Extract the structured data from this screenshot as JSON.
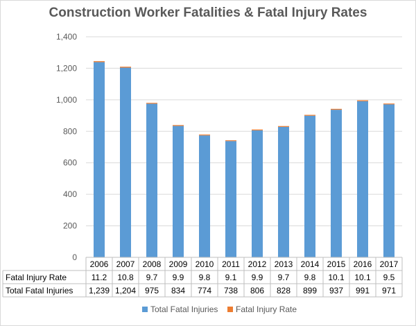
{
  "chart_data": {
    "type": "bar",
    "stacked": true,
    "title": "Construction Worker Fatalities & Fatal Injury Rates",
    "categories": [
      "2006",
      "2007",
      "2008",
      "2009",
      "2010",
      "2011",
      "2012",
      "2013",
      "2014",
      "2015",
      "2016",
      "2017"
    ],
    "series": [
      {
        "name": "Total Fatal Injuries",
        "color": "#5b9bd5",
        "values": [
          1239,
          1204,
          975,
          834,
          774,
          738,
          806,
          828,
          899,
          937,
          991,
          971
        ],
        "display": [
          "1,239",
          "1,204",
          "975",
          "834",
          "774",
          "738",
          "806",
          "828",
          "899",
          "937",
          "991",
          "971"
        ]
      },
      {
        "name": "Fatal Injury Rate",
        "color": "#ed7d31",
        "values": [
          11.2,
          10.8,
          9.7,
          9.9,
          9.8,
          9.1,
          9.9,
          9.7,
          9.8,
          10.1,
          10.1,
          9.5
        ],
        "display": [
          "11.2",
          "10.8",
          "9.7",
          "9.9",
          "9.8",
          "9.1",
          "9.9",
          "9.7",
          "9.8",
          "10.1",
          "10.1",
          "9.5"
        ]
      }
    ],
    "ylim": [
      0,
      1400
    ],
    "yticks": [
      "0",
      "200",
      "400",
      "600",
      "800",
      "1,000",
      "1,200",
      "1,400"
    ],
    "ytick_values": [
      0,
      200,
      400,
      600,
      800,
      1000,
      1200,
      1400
    ],
    "grid": true,
    "legend": "bottom",
    "data_table": true
  }
}
